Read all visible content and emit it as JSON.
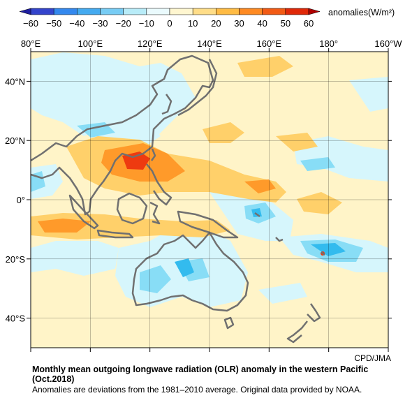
{
  "colorbar": {
    "unit_label": "anomalies(W/m²)",
    "ticks": [
      "−60",
      "−50",
      "−40",
      "−30",
      "−20",
      "−10",
      "0",
      "10",
      "20",
      "30",
      "40",
      "50",
      "60"
    ],
    "colors": [
      "#2020a0",
      "#3355dd",
      "#3399ee",
      "#55bbf0",
      "#88ddf6",
      "#c8f2fa",
      "#ffffff",
      "#fff2c0",
      "#ffd87a",
      "#ffaa33",
      "#ff7a1a",
      "#ee3a10",
      "#b00000"
    ]
  },
  "map": {
    "lon_labels": [
      "80°E",
      "100°E",
      "120°E",
      "140°E",
      "160°E",
      "180°",
      "160°W"
    ],
    "lat_labels": [
      "40°N",
      "20°N",
      "0°",
      "20°S",
      "40°S"
    ],
    "lon_range": [
      80,
      200
    ],
    "lat_range": [
      -50,
      50
    ],
    "palette": {
      "neg_strong": "#33bbee",
      "neg_mid": "#88ddf6",
      "neg_weak": "#d6f6fc",
      "pos_weak": "#fff4c8",
      "pos_mid": "#ffd06a",
      "pos_strong": "#ff9a2a",
      "extreme": "#ee3a10",
      "coast": "#707070",
      "grid": "#000000"
    }
  },
  "credit": "CPD/JMA",
  "caption": {
    "title": "Monthly mean outgoing longwave radiation (OLR) anomaly in the western Pacific (Oct.2018)",
    "note": "Anomalies are deviations from the 1981–2010 average. Original data provided by NOAA."
  }
}
